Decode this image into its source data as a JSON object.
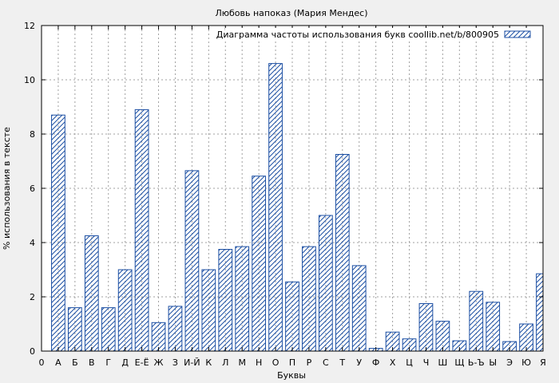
{
  "chart_data": {
    "type": "bar",
    "title": "Любовь напоказ (Мария Мендес)",
    "xlabel": "Буквы",
    "ylabel": "% использования в тексте",
    "legend": {
      "label": "Диаграмма частоты использования букв coollib.net/b/800905",
      "placement": "top-right"
    },
    "grid": true,
    "ylim": [
      0,
      12
    ],
    "yticks": [
      0,
      2,
      4,
      6,
      8,
      10,
      12
    ],
    "categories": [
      "0",
      "А",
      "Б",
      "В",
      "Г",
      "Д",
      "Е-Ё",
      "Ж",
      "З",
      "И-Й",
      "К",
      "Л",
      "М",
      "Н",
      "О",
      "П",
      "Р",
      "С",
      "Т",
      "У",
      "Ф",
      "Х",
      "Ц",
      "Ч",
      "Ш",
      "Щ",
      "Ь-Ъ",
      "Ы",
      "Э",
      "Ю",
      "Я"
    ],
    "values": [
      0,
      8.7,
      1.6,
      4.25,
      1.6,
      3.0,
      8.9,
      1.05,
      1.65,
      6.65,
      3.0,
      3.75,
      3.85,
      6.45,
      10.6,
      2.55,
      3.85,
      5.0,
      7.25,
      3.15,
      0.1,
      0.7,
      0.45,
      1.75,
      1.1,
      0.38,
      2.2,
      1.8,
      0.35,
      1.0,
      2.85
    ],
    "colors": {
      "bar_stroke": "#1c4fa3",
      "hatch": "#1c4fa3",
      "grid": "#a0a0a0",
      "axis": "#000000",
      "background": "#f0f0f0",
      "plot_background": "#ffffff"
    }
  }
}
